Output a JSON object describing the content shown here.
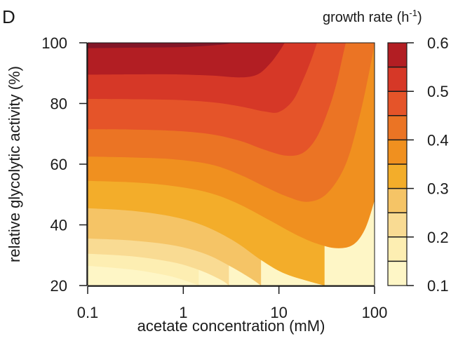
{
  "panel_label": "D",
  "chart_data": {
    "type": "contour",
    "xlabel": "acetate concentration (mM)",
    "ylabel": "relative glycolytic activity (%)",
    "x_scale": "log",
    "xlim": [
      0.1,
      100
    ],
    "ylim": [
      20,
      100
    ],
    "x_ticks": [
      0.1,
      1,
      10,
      100
    ],
    "x_tick_labels": [
      "0.1",
      "1",
      "10",
      "100"
    ],
    "y_ticks": [
      20,
      40,
      60,
      80,
      100
    ],
    "y_tick_labels": [
      "20",
      "40",
      "60",
      "80",
      "100"
    ],
    "colorbar": {
      "title": "growth rate (h",
      "title_superscript": "-1",
      "title_suffix": ")",
      "ticks": [
        0.1,
        0.2,
        0.3,
        0.4,
        0.5,
        0.6
      ],
      "tick_labels": [
        "0.1",
        "0.2",
        "0.3",
        "0.4",
        "0.5",
        "0.6"
      ],
      "range": [
        0.1,
        0.6
      ]
    },
    "levels": [
      0.1,
      0.15,
      0.2,
      0.25,
      0.3,
      0.35,
      0.4,
      0.45,
      0.5,
      0.55,
      0.6
    ],
    "level_colors": [
      "#fef6c6",
      "#fdeeb2",
      "#f9db93",
      "#f5c466",
      "#f3ad2a",
      "#f0901f",
      "#eb7424",
      "#e55429",
      "#d63827",
      "#b21e23",
      "#821627"
    ],
    "contour_boundaries": [
      {
        "level": 0.15,
        "points": [
          [
            0.1,
            26.5
          ],
          [
            0.3,
            25.2
          ],
          [
            0.7,
            23.2
          ],
          [
            1.2,
            21.0
          ],
          [
            1.45,
            20
          ]
        ]
      },
      {
        "level": 0.2,
        "points": [
          [
            0.1,
            30.5
          ],
          [
            0.3,
            29.6
          ],
          [
            0.8,
            27.6
          ],
          [
            1.5,
            25.0
          ],
          [
            2.5,
            21.8
          ],
          [
            3.0,
            20
          ]
        ]
      },
      {
        "level": 0.25,
        "points": [
          [
            0.1,
            35.5
          ],
          [
            0.3,
            34.8
          ],
          [
            0.8,
            33.2
          ],
          [
            1.7,
            30.4
          ],
          [
            3.0,
            26.6
          ],
          [
            5.0,
            22.5
          ],
          [
            6.5,
            20
          ]
        ]
      },
      {
        "level": 0.3,
        "points": [
          [
            0.1,
            45.5
          ],
          [
            0.3,
            44.6
          ],
          [
            0.8,
            42.6
          ],
          [
            1.7,
            39.5
          ],
          [
            3.5,
            34.4
          ],
          [
            6.5,
            28.4
          ],
          [
            11,
            24.2
          ],
          [
            20,
            21.5
          ],
          [
            30,
            20
          ]
        ]
      },
      {
        "level": 0.35,
        "points": [
          [
            0.1,
            54.5
          ],
          [
            0.3,
            54.0
          ],
          [
            0.7,
            53.0
          ],
          [
            1.7,
            50.9
          ],
          [
            3.5,
            47.4
          ],
          [
            8,
            41.5
          ],
          [
            15,
            36.8
          ],
          [
            25,
            33.8
          ],
          [
            40,
            32.3
          ],
          [
            60,
            33.5
          ],
          [
            80,
            38.8
          ],
          [
            100,
            48.0
          ]
        ]
      },
      {
        "level": 0.4,
        "points": [
          [
            0.1,
            62.5
          ],
          [
            0.3,
            62.2
          ],
          [
            0.8,
            61.6
          ],
          [
            2,
            59.8
          ],
          [
            4,
            56.4
          ],
          [
            7,
            52.7
          ],
          [
            12,
            49.4
          ],
          [
            20,
            47.6
          ],
          [
            32,
            50.4
          ],
          [
            50,
            60.0
          ],
          [
            70,
            76.0
          ],
          [
            90,
            92.0
          ],
          [
            100,
            100
          ]
        ]
      },
      {
        "level": 0.45,
        "points": [
          [
            0.1,
            71.5
          ],
          [
            0.3,
            71.4
          ],
          [
            0.8,
            71.0
          ],
          [
            2,
            69.8
          ],
          [
            4,
            67.6
          ],
          [
            7,
            64.8
          ],
          [
            12,
            62.8
          ],
          [
            18,
            63.8
          ],
          [
            25,
            69.0
          ],
          [
            33,
            78.0
          ],
          [
            40,
            86.6
          ],
          [
            46,
            95.0
          ],
          [
            50,
            100
          ]
        ]
      },
      {
        "level": 0.5,
        "points": [
          [
            0.1,
            81.5
          ],
          [
            0.3,
            81.4
          ],
          [
            0.8,
            81.2
          ],
          [
            2,
            80.4
          ],
          [
            4,
            79.0
          ],
          [
            7,
            77.4
          ],
          [
            10,
            77.2
          ],
          [
            14,
            81.0
          ],
          [
            18,
            88.0
          ],
          [
            22,
            94.8
          ],
          [
            25,
            100
          ]
        ]
      },
      {
        "level": 0.55,
        "points": [
          [
            0.1,
            89.5
          ],
          [
            0.3,
            89.6
          ],
          [
            0.8,
            89.6
          ],
          [
            2,
            89.2
          ],
          [
            4,
            88.6
          ],
          [
            6,
            89.6
          ],
          [
            8,
            93.0
          ],
          [
            10,
            97.0
          ],
          [
            11.5,
            100
          ]
        ]
      },
      {
        "level": 0.6,
        "points": [
          [
            0.1,
            98.2
          ],
          [
            0.3,
            98.4
          ],
          [
            1,
            98.6
          ],
          [
            2.5,
            99.4
          ],
          [
            3.2,
            100
          ]
        ]
      }
    ]
  }
}
